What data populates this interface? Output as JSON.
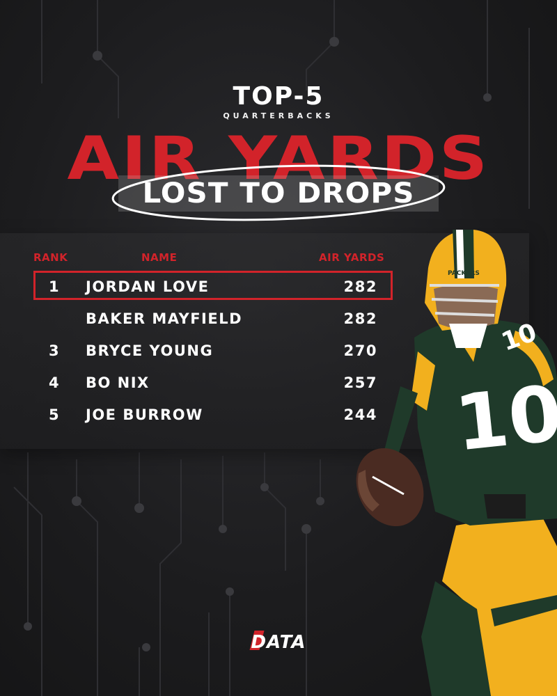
{
  "header": {
    "top5": "TOP-5",
    "subtitle": "QUARTERBACKS",
    "title": "AIR YARDS",
    "highlight": "LOST TO DROPS"
  },
  "table": {
    "columns": [
      "RANK",
      "NAME",
      "AIR YARDS"
    ],
    "rows": [
      {
        "rank": "1",
        "name": "JORDAN LOVE",
        "air_yards": "282"
      },
      {
        "rank": "",
        "name": "BAKER MAYFIELD",
        "air_yards": "282"
      },
      {
        "rank": "3",
        "name": "BRYCE YOUNG",
        "air_yards": "270"
      },
      {
        "rank": "4",
        "name": "BO NIX",
        "air_yards": "257"
      },
      {
        "rank": "5",
        "name": "JOE BURROW",
        "air_yards": "244"
      }
    ]
  },
  "player_photo": {
    "jersey_number": "10",
    "helmet_text": "PACKERS"
  },
  "brand": {
    "logo_text": "DATA"
  },
  "colors": {
    "accent_red": "#d2232a",
    "background": "#1e1e20",
    "jersey_green": "#1f3a2a",
    "jersey_gold": "#f2b01e"
  }
}
